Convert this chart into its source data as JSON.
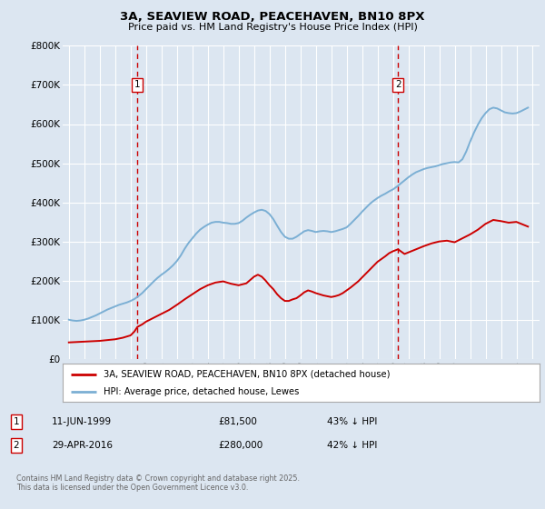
{
  "title": "3A, SEAVIEW ROAD, PEACEHAVEN, BN10 8PX",
  "subtitle": "Price paid vs. HM Land Registry's House Price Index (HPI)",
  "ylim": [
    0,
    800000
  ],
  "yticks": [
    0,
    100000,
    200000,
    300000,
    400000,
    500000,
    600000,
    700000,
    800000
  ],
  "ytick_labels": [
    "£0",
    "£100K",
    "£200K",
    "£300K",
    "£400K",
    "£500K",
    "£600K",
    "£700K",
    "£800K"
  ],
  "xlim_start": 1994.6,
  "xlim_end": 2025.5,
  "background_color": "#dce6f1",
  "grid_color": "#ffffff",
  "red_line_color": "#cc0000",
  "blue_line_color": "#7bafd4",
  "vline_color": "#cc0000",
  "marker1_x": 1999.44,
  "marker1_label": "1",
  "marker2_x": 2016.33,
  "marker2_label": "2",
  "legend_line1": "3A, SEAVIEW ROAD, PEACEHAVEN, BN10 8PX (detached house)",
  "legend_line2": "HPI: Average price, detached house, Lewes",
  "annot1_num": "1",
  "annot1_date": "11-JUN-1999",
  "annot1_price": "£81,500",
  "annot1_pct": "43% ↓ HPI",
  "annot2_num": "2",
  "annot2_date": "29-APR-2016",
  "annot2_price": "£280,000",
  "annot2_pct": "42% ↓ HPI",
  "footer": "Contains HM Land Registry data © Crown copyright and database right 2025.\nThis data is licensed under the Open Government Licence v3.0.",
  "hpi_x": [
    1995.0,
    1995.25,
    1995.5,
    1995.75,
    1996.0,
    1996.25,
    1996.5,
    1996.75,
    1997.0,
    1997.25,
    1997.5,
    1997.75,
    1998.0,
    1998.25,
    1998.5,
    1998.75,
    1999.0,
    1999.25,
    1999.5,
    1999.75,
    2000.0,
    2000.25,
    2000.5,
    2000.75,
    2001.0,
    2001.25,
    2001.5,
    2001.75,
    2002.0,
    2002.25,
    2002.5,
    2002.75,
    2003.0,
    2003.25,
    2003.5,
    2003.75,
    2004.0,
    2004.25,
    2004.5,
    2004.75,
    2005.0,
    2005.25,
    2005.5,
    2005.75,
    2006.0,
    2006.25,
    2006.5,
    2006.75,
    2007.0,
    2007.25,
    2007.5,
    2007.75,
    2008.0,
    2008.25,
    2008.5,
    2008.75,
    2009.0,
    2009.25,
    2009.5,
    2009.75,
    2010.0,
    2010.25,
    2010.5,
    2010.75,
    2011.0,
    2011.25,
    2011.5,
    2011.75,
    2012.0,
    2012.25,
    2012.5,
    2012.75,
    2013.0,
    2013.25,
    2013.5,
    2013.75,
    2014.0,
    2014.25,
    2014.5,
    2014.75,
    2015.0,
    2015.25,
    2015.5,
    2015.75,
    2016.0,
    2016.25,
    2016.5,
    2016.75,
    2017.0,
    2017.25,
    2017.5,
    2017.75,
    2018.0,
    2018.25,
    2018.5,
    2018.75,
    2019.0,
    2019.25,
    2019.5,
    2019.75,
    2020.0,
    2020.25,
    2020.5,
    2020.75,
    2021.0,
    2021.25,
    2021.5,
    2021.75,
    2022.0,
    2022.25,
    2022.5,
    2022.75,
    2023.0,
    2023.25,
    2023.5,
    2023.75,
    2024.0,
    2024.25,
    2024.5,
    2024.75
  ],
  "hpi_y": [
    100000,
    98000,
    97000,
    98000,
    100000,
    103000,
    107000,
    111000,
    116000,
    121000,
    126000,
    130000,
    134000,
    138000,
    141000,
    144000,
    148000,
    153000,
    160000,
    168000,
    178000,
    188000,
    198000,
    207000,
    215000,
    222000,
    230000,
    239000,
    250000,
    264000,
    281000,
    296000,
    308000,
    320000,
    330000,
    337000,
    343000,
    348000,
    350000,
    350000,
    348000,
    347000,
    345000,
    345000,
    347000,
    353000,
    361000,
    368000,
    374000,
    379000,
    381000,
    378000,
    370000,
    357000,
    340000,
    324000,
    312000,
    307000,
    307000,
    312000,
    319000,
    326000,
    329000,
    327000,
    324000,
    326000,
    327000,
    326000,
    324000,
    326000,
    329000,
    332000,
    336000,
    345000,
    355000,
    365000,
    376000,
    386000,
    396000,
    404000,
    411000,
    417000,
    422000,
    428000,
    433000,
    440000,
    448000,
    456000,
    464000,
    471000,
    477000,
    481000,
    485000,
    488000,
    490000,
    492000,
    495000,
    498000,
    500000,
    502000,
    503000,
    502000,
    510000,
    530000,
    555000,
    578000,
    598000,
    615000,
    628000,
    638000,
    642000,
    640000,
    635000,
    630000,
    628000,
    627000,
    628000,
    632000,
    637000,
    642000
  ],
  "red_x": [
    1995.0,
    1995.5,
    1996.0,
    1996.5,
    1997.0,
    1997.5,
    1998.0,
    1998.5,
    1999.0,
    1999.25,
    1999.44,
    1999.75,
    2000.0,
    2000.5,
    2001.0,
    2001.5,
    2002.0,
    2002.5,
    2003.0,
    2003.5,
    2004.0,
    2004.5,
    2005.0,
    2005.5,
    2006.0,
    2006.5,
    2007.0,
    2007.25,
    2007.5,
    2007.75,
    2008.0,
    2008.25,
    2008.5,
    2008.75,
    2009.0,
    2009.25,
    2009.5,
    2009.75,
    2010.0,
    2010.25,
    2010.5,
    2010.75,
    2011.0,
    2011.25,
    2011.5,
    2011.75,
    2012.0,
    2012.25,
    2012.5,
    2012.75,
    2013.0,
    2013.25,
    2013.5,
    2013.75,
    2014.0,
    2014.25,
    2014.5,
    2014.75,
    2015.0,
    2015.25,
    2015.5,
    2015.75,
    2016.0,
    2016.33,
    2016.75,
    2017.0,
    2017.5,
    2018.0,
    2018.5,
    2019.0,
    2019.5,
    2020.0,
    2020.5,
    2021.0,
    2021.5,
    2022.0,
    2022.5,
    2023.0,
    2023.5,
    2024.0,
    2024.5,
    2024.75
  ],
  "red_y": [
    42000,
    43000,
    44000,
    45000,
    46000,
    48000,
    50000,
    54000,
    60000,
    70000,
    81500,
    88000,
    95000,
    105000,
    115000,
    125000,
    138000,
    152000,
    165000,
    178000,
    188000,
    195000,
    198000,
    192000,
    188000,
    193000,
    210000,
    215000,
    210000,
    200000,
    188000,
    178000,
    165000,
    155000,
    148000,
    148000,
    152000,
    155000,
    162000,
    170000,
    175000,
    172000,
    168000,
    165000,
    162000,
    160000,
    158000,
    160000,
    163000,
    168000,
    175000,
    182000,
    190000,
    198000,
    208000,
    218000,
    228000,
    238000,
    248000,
    255000,
    262000,
    270000,
    275000,
    280000,
    268000,
    272000,
    280000,
    288000,
    295000,
    300000,
    302000,
    298000,
    308000,
    318000,
    330000,
    345000,
    355000,
    352000,
    348000,
    350000,
    342000,
    338000
  ]
}
